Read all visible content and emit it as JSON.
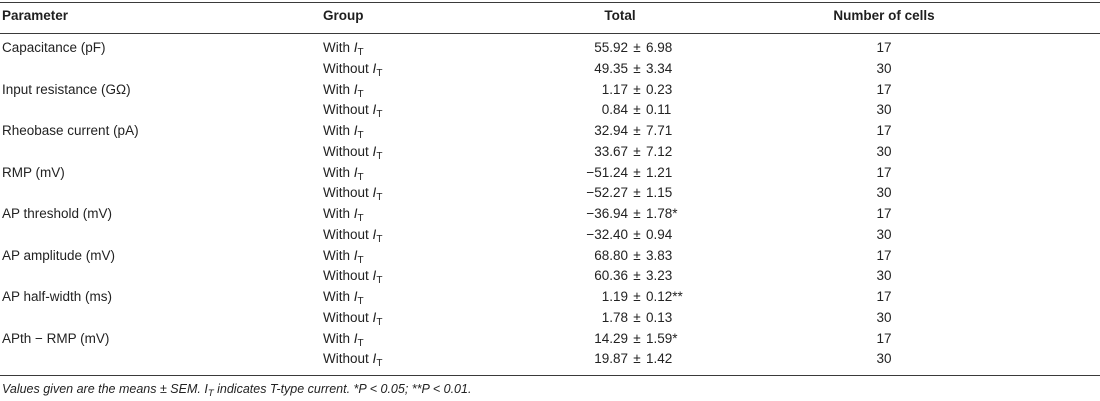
{
  "header": {
    "parameter": "Parameter",
    "group": "Group",
    "total": "Total",
    "cells": "Number of cells"
  },
  "rows": [
    {
      "parameter": "Capacitance (pF)",
      "group_prefix": "With",
      "value": "55.92",
      "pm": "±",
      "sem": "6.98",
      "cells": "17"
    },
    {
      "parameter": "",
      "group_prefix": "Without",
      "value": "49.35",
      "pm": "±",
      "sem": "3.34",
      "cells": "30"
    },
    {
      "parameter": "Input resistance (GΩ)",
      "group_prefix": "With",
      "value": "1.17",
      "pm": "±",
      "sem": "0.23",
      "cells": "17"
    },
    {
      "parameter": "",
      "group_prefix": "Without",
      "value": "0.84",
      "pm": "±",
      "sem": "0.11",
      "cells": "30"
    },
    {
      "parameter": "Rheobase current (pA)",
      "group_prefix": "With",
      "value": "32.94",
      "pm": "±",
      "sem": "7.71",
      "cells": "17"
    },
    {
      "parameter": "",
      "group_prefix": "Without",
      "value": "33.67",
      "pm": "±",
      "sem": "7.12",
      "cells": "30"
    },
    {
      "parameter": "RMP (mV)",
      "group_prefix": "With",
      "value": "−51.24",
      "pm": "±",
      "sem": "1.21",
      "cells": "17"
    },
    {
      "parameter": "",
      "group_prefix": "Without",
      "value": "−52.27",
      "pm": "±",
      "sem": "1.15",
      "cells": "30"
    },
    {
      "parameter": "AP threshold (mV)",
      "group_prefix": "With",
      "value": "−36.94",
      "pm": "±",
      "sem": "1.78*",
      "cells": "17"
    },
    {
      "parameter": "",
      "group_prefix": "Without",
      "value": "−32.40",
      "pm": "±",
      "sem": "0.94",
      "cells": "30"
    },
    {
      "parameter": "AP amplitude (mV)",
      "group_prefix": "With",
      "value": "68.80",
      "pm": "±",
      "sem": "3.83",
      "cells": "17"
    },
    {
      "parameter": "",
      "group_prefix": "Without",
      "value": "60.36",
      "pm": "±",
      "sem": "3.23",
      "cells": "30"
    },
    {
      "parameter": "AP half-width (ms)",
      "group_prefix": "With",
      "value": "1.19",
      "pm": "±",
      "sem": "0.12**",
      "cells": "17"
    },
    {
      "parameter": "",
      "group_prefix": "Without",
      "value": "1.78",
      "pm": "±",
      "sem": "0.13",
      "cells": "30"
    },
    {
      "parameter": "APth − RMP (mV)",
      "group_prefix": "With",
      "value": "14.29",
      "pm": "±",
      "sem": "1.59*",
      "cells": "17"
    },
    {
      "parameter": "",
      "group_prefix": "Without",
      "value": "19.87",
      "pm": "±",
      "sem": "1.42",
      "cells": "30"
    }
  ],
  "symbol": {
    "main": "I",
    "sub": "T"
  },
  "footnote": {
    "part1": "Values given are the means ± SEM. ",
    "sym_main": "I",
    "sym_sub": "T",
    "part2": " indicates T-type current. *P < 0.05; **P < 0.01."
  }
}
